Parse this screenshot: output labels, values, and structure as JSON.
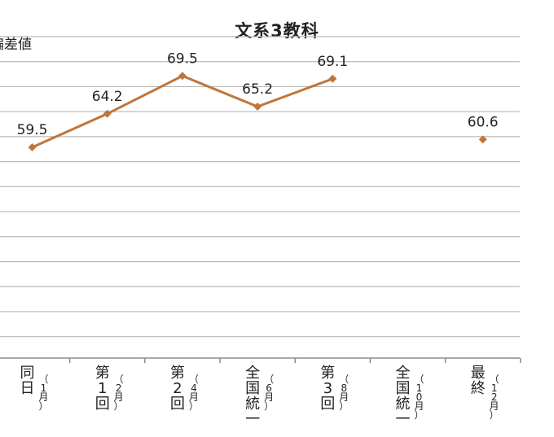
{
  "chart_data": {
    "type": "line",
    "title": "文系3教科",
    "ylabel": "偏差値",
    "ylim": [
      30,
      75
    ],
    "grid": true,
    "categories": [
      {
        "main": "同日",
        "sub": "（1月）"
      },
      {
        "main": "第1回",
        "sub": "（2月）"
      },
      {
        "main": "第2回",
        "sub": "（4月）"
      },
      {
        "main": "全国統一",
        "sub": "（6月）"
      },
      {
        "main": "第3回",
        "sub": "（8月）"
      },
      {
        "main": "全国統一",
        "sub": "（10月）"
      },
      {
        "main": "最終",
        "sub": "（12月）"
      }
    ],
    "series": [
      {
        "values": [
          59.5,
          64.2,
          69.5,
          65.2,
          69.1,
          null,
          60.6
        ],
        "labels": [
          "59.5",
          "64.2",
          "69.5",
          "65.2",
          "69.1",
          "",
          "60.6"
        ],
        "color": "#c0753a"
      }
    ]
  }
}
